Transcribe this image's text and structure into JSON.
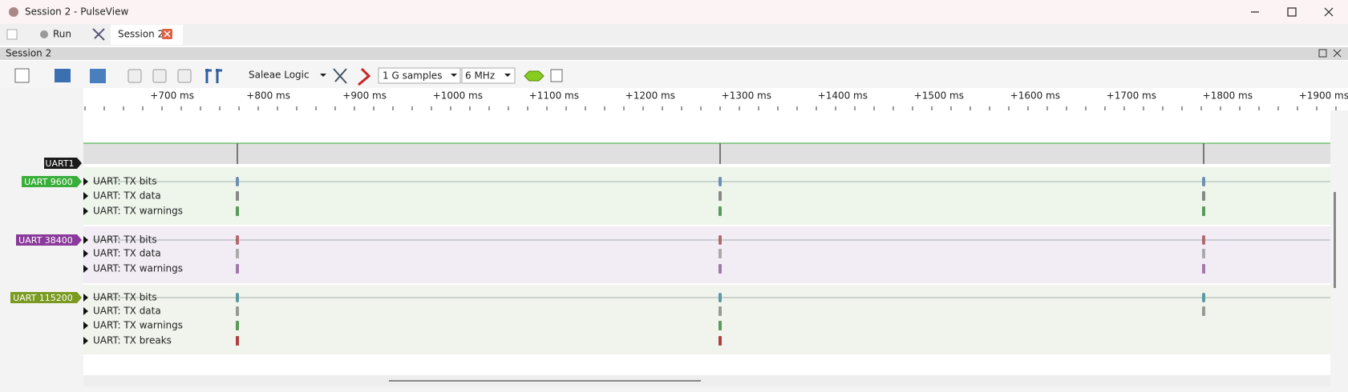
{
  "window": {
    "title": "Session 2 - PulseView"
  },
  "tabs": {
    "run": "Run",
    "session": "Session 2"
  },
  "session_bar": {
    "title": "Session 2"
  },
  "toolbar": {
    "device": "Saleae Logic",
    "samples": "1 G samples",
    "rate": "6 MHz"
  },
  "ruler": {
    "ticks": [
      "+700 ms",
      "+800 ms",
      "+900 ms",
      "+1000 ms",
      "+1100 ms",
      "+1200 ms",
      "+1300 ms",
      "+1400 ms",
      "+1500 ms",
      "+1600 ms",
      "+1700 ms",
      "+1800 ms",
      "+1900 ms"
    ]
  },
  "channels": [
    {
      "label": "UART1",
      "rows": []
    },
    {
      "label": "UART 9600",
      "rows": [
        "UART: TX bits",
        "UART: TX data",
        "UART: TX warnings"
      ]
    },
    {
      "label": "UART 38400",
      "rows": [
        "UART: TX bits",
        "UART: TX data",
        "UART: TX warnings"
      ]
    },
    {
      "label": "UART 115200",
      "rows": [
        "UART: TX bits",
        "UART: TX data",
        "UART: TX warnings",
        "UART: TX breaks"
      ]
    }
  ]
}
